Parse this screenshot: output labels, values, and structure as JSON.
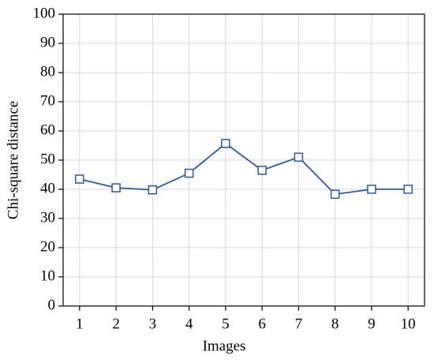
{
  "chart_data": {
    "type": "line",
    "x_label": "Images",
    "y_label": "Chi-square distance",
    "x": [
      1,
      2,
      3,
      4,
      5,
      6,
      7,
      8,
      9,
      10
    ],
    "series": [
      {
        "color": "#2e58a0",
        "values": [
          43.5,
          40.5,
          39.8,
          45.5,
          55.7,
          46.5,
          51,
          38.3,
          40,
          40
        ]
      }
    ],
    "xlim": [
      0.55,
      10.45
    ],
    "xticks": [
      1,
      2,
      3,
      4,
      5,
      6,
      7,
      8,
      9,
      10
    ],
    "ylim": [
      0,
      100
    ],
    "yticks": [
      0,
      10,
      20,
      30,
      40,
      50,
      60,
      70,
      80,
      90,
      100
    ],
    "grid": true,
    "marker": "square"
  }
}
